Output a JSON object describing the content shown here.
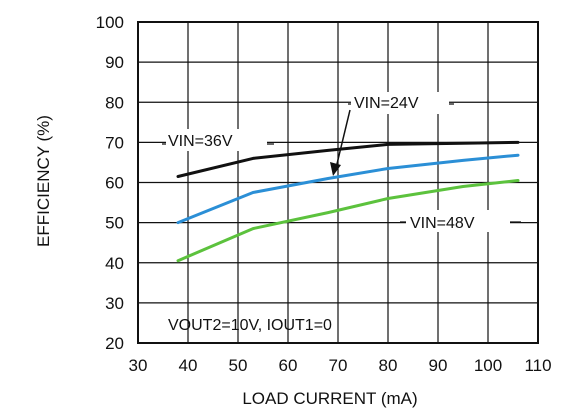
{
  "chart_data": {
    "type": "line",
    "xlabel": "LOAD CURRENT (mA)",
    "ylabel": "EFFICIENCY (%)",
    "xlim": [
      30,
      110
    ],
    "ylim": [
      20,
      100
    ],
    "xticks": [
      "30",
      "40",
      "50",
      "60",
      "70",
      "80",
      "90",
      "100",
      "110"
    ],
    "yticks": [
      "20",
      "30",
      "40",
      "50",
      "60",
      "70",
      "80",
      "90",
      "100"
    ],
    "grid": true,
    "series": [
      {
        "name": "VIN=36V",
        "color": "#111111",
        "points": [
          [
            38,
            61.5
          ],
          [
            53,
            66
          ],
          [
            68,
            68
          ],
          [
            80,
            69.5
          ],
          [
            95,
            69.8
          ],
          [
            106,
            70
          ]
        ]
      },
      {
        "name": "VIN=24V",
        "color": "#2b8fd6",
        "points": [
          [
            38,
            50
          ],
          [
            53,
            57.5
          ],
          [
            68,
            61
          ],
          [
            80,
            63.5
          ],
          [
            95,
            65.5
          ],
          [
            106,
            66.8
          ]
        ]
      },
      {
        "name": "VIN=48V",
        "color": "#5cc23d",
        "points": [
          [
            38,
            40.5
          ],
          [
            53,
            48.5
          ],
          [
            68,
            52.5
          ],
          [
            80,
            56
          ],
          [
            95,
            59
          ],
          [
            106,
            60.5
          ]
        ]
      }
    ],
    "annotations": {
      "vin24_label": "VIN=24V",
      "vin36_label": "VIN=36V",
      "vin48_label": "VIN=48V",
      "conditions": "VOUT2=10V, IOUT1=0"
    }
  }
}
